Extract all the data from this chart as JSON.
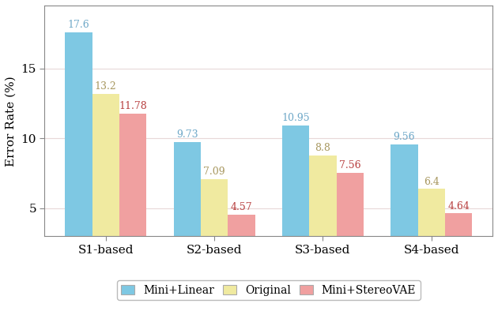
{
  "categories": [
    "S1-based",
    "S2-based",
    "S3-based",
    "S4-based"
  ],
  "series": {
    "Mini+Linear": [
      17.6,
      9.73,
      10.95,
      9.56
    ],
    "Original": [
      13.2,
      7.09,
      8.8,
      6.4
    ],
    "Mini+StereoVAE": [
      11.78,
      4.57,
      7.56,
      4.64
    ]
  },
  "colors": {
    "Mini+Linear": "#7EC8E3",
    "Original": "#F0EAA0",
    "Mini+StereoVAE": "#F0A0A0"
  },
  "label_colors": {
    "Mini+Linear": "#6EA8C8",
    "Original": "#A89860",
    "Mini+StereoVAE": "#B84040"
  },
  "ylabel": "Error Rate (%)",
  "ylim": [
    3.0,
    19.5
  ],
  "yticks": [
    5,
    10,
    15
  ],
  "bar_width": 0.25,
  "figsize": [
    6.3,
    3.94
  ],
  "dpi": 100,
  "legend_order": [
    "Mini+Linear",
    "Original",
    "Mini+StereoVAE"
  ],
  "tick_fontsize": 11,
  "label_fontsize": 9,
  "legend_fontsize": 10
}
